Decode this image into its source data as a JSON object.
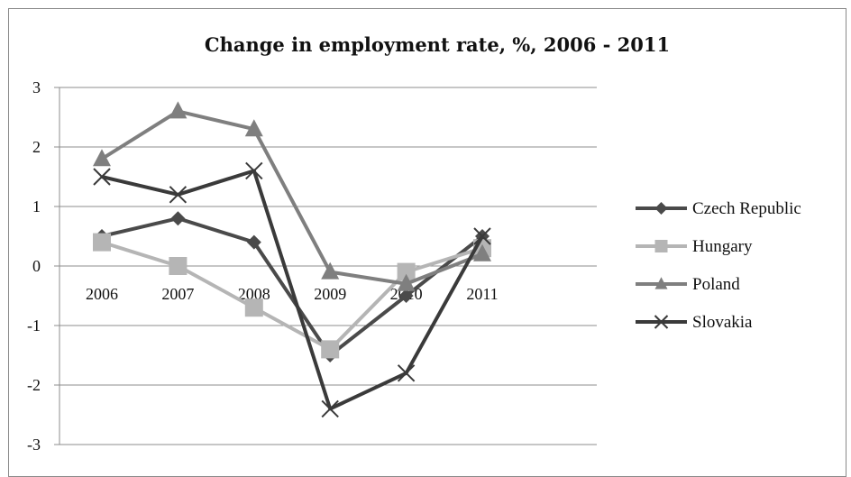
{
  "chart_data": {
    "type": "line",
    "title": "Change in  employment rate, %, 2006 - 2011",
    "xlabel": "",
    "ylabel": "",
    "categories": [
      "2006",
      "2007",
      "2008",
      "2009",
      "2010",
      "2011"
    ],
    "ylim": [
      -3,
      3
    ],
    "yticks": [
      "3",
      "2",
      "1",
      "0",
      "-1",
      "-2",
      "-3"
    ],
    "grid": true,
    "legend_position": "right",
    "series": [
      {
        "name": "Czech Republic",
        "values": [
          0.5,
          0.8,
          0.4,
          -1.5,
          -0.5,
          0.5
        ],
        "color": "#4a4a4a",
        "marker": "diamond"
      },
      {
        "name": "Hungary",
        "values": [
          0.4,
          0.0,
          -0.7,
          -1.4,
          -0.1,
          0.3
        ],
        "color": "#b5b5b5",
        "marker": "square"
      },
      {
        "name": "Poland",
        "values": [
          1.8,
          2.6,
          2.3,
          -0.1,
          -0.3,
          0.2
        ],
        "color": "#7f7f7f",
        "marker": "triangle"
      },
      {
        "name": "Slovakia",
        "values": [
          1.5,
          1.2,
          1.6,
          -2.4,
          -1.8,
          0.5
        ],
        "color": "#3a3a3a",
        "marker": "x"
      }
    ]
  }
}
